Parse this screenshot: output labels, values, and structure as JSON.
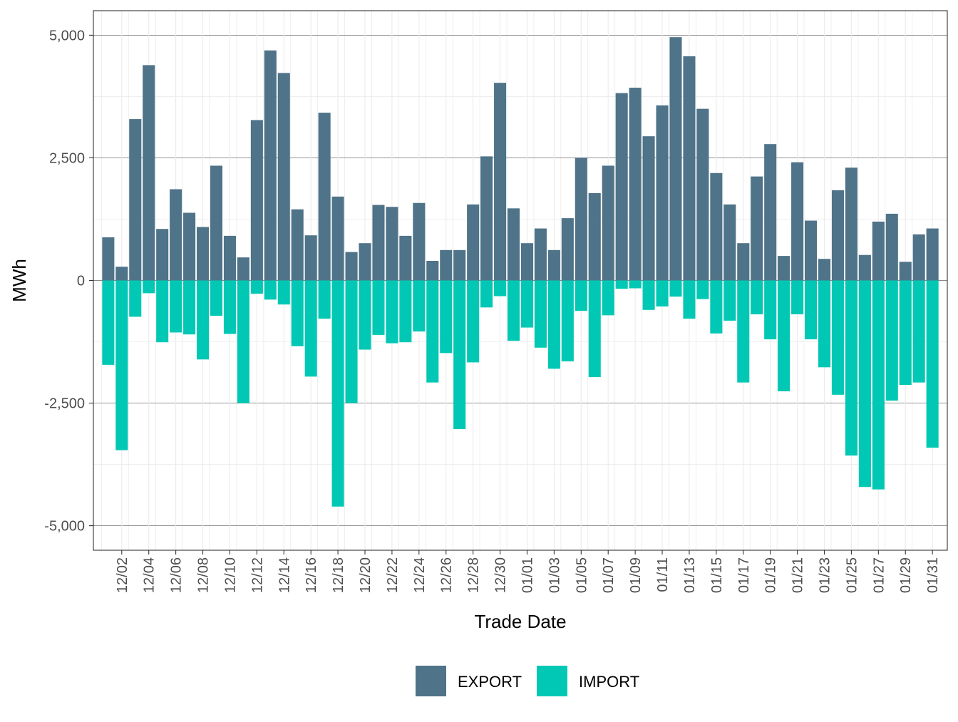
{
  "chart_data": {
    "type": "bar",
    "stacked": "diverging",
    "title": "",
    "xlabel": "Trade Date",
    "ylabel": "MWh",
    "ylim": [
      -5000,
      5000
    ],
    "y_ticks": [
      -5000,
      -2500,
      0,
      2500,
      5000
    ],
    "y_tick_labels": [
      "-5,000",
      "-2,500",
      "0",
      "2,500",
      "5,000"
    ],
    "grid": true,
    "legend_position": "bottom",
    "categories": [
      "12/01",
      "12/02",
      "12/03",
      "12/04",
      "12/05",
      "12/06",
      "12/07",
      "12/08",
      "12/09",
      "12/10",
      "12/11",
      "12/12",
      "12/13",
      "12/14",
      "12/15",
      "12/16",
      "12/17",
      "12/18",
      "12/19",
      "12/20",
      "12/21",
      "12/22",
      "12/23",
      "12/24",
      "12/25",
      "12/26",
      "12/27",
      "12/28",
      "12/29",
      "12/30",
      "12/31",
      "01/01",
      "01/02",
      "01/03",
      "01/04",
      "01/05",
      "01/06",
      "01/07",
      "01/08",
      "01/09",
      "01/10",
      "01/11",
      "01/12",
      "01/13",
      "01/14",
      "01/15",
      "01/16",
      "01/17",
      "01/18",
      "01/19",
      "01/20",
      "01/21",
      "01/22",
      "01/23",
      "01/24",
      "01/25",
      "01/26",
      "01/27",
      "01/28",
      "01/29",
      "01/30",
      "01/31"
    ],
    "x_tick_labels": [
      "12/02",
      "12/04",
      "12/06",
      "12/08",
      "12/10",
      "12/12",
      "12/14",
      "12/16",
      "12/18",
      "12/20",
      "12/22",
      "12/24",
      "12/26",
      "12/28",
      "12/30",
      "01/01",
      "01/03",
      "01/05",
      "01/07",
      "01/09",
      "01/11",
      "01/13",
      "01/15",
      "01/17",
      "01/19",
      "01/21",
      "01/23",
      "01/25",
      "01/27",
      "01/29",
      "01/31"
    ],
    "series": [
      {
        "name": "EXPORT",
        "color": "#4f7388",
        "values": [
          880,
          280,
          3290,
          4390,
          1050,
          1860,
          1380,
          1090,
          2340,
          910,
          470,
          3270,
          4690,
          4230,
          1450,
          920,
          3420,
          1710,
          580,
          760,
          1540,
          1500,
          910,
          1580,
          400,
          620,
          620,
          1550,
          2530,
          4030,
          1470,
          760,
          1060,
          620,
          1270,
          2500,
          1780,
          2340,
          3820,
          3930,
          2940,
          3570,
          4960,
          4570,
          3500,
          2190,
          1550,
          760,
          2120,
          2780,
          500,
          2410,
          1220,
          440,
          1840,
          2300,
          520,
          1200,
          1360,
          380,
          940,
          1060
        ]
      },
      {
        "name": "IMPORT",
        "color": "#00c8b4",
        "values": [
          -1720,
          -3460,
          -740,
          -260,
          -1260,
          -1060,
          -1100,
          -1610,
          -720,
          -1090,
          -2500,
          -270,
          -390,
          -490,
          -1340,
          -1960,
          -780,
          -4610,
          -2500,
          -1410,
          -1110,
          -1280,
          -1260,
          -1040,
          -2080,
          -1480,
          -3030,
          -1670,
          -550,
          -320,
          -1230,
          -960,
          -1370,
          -1800,
          -1650,
          -620,
          -1970,
          -710,
          -170,
          -160,
          -600,
          -530,
          -330,
          -780,
          -380,
          -1080,
          -820,
          -2080,
          -690,
          -1200,
          -2260,
          -690,
          -1200,
          -1770,
          -2330,
          -3570,
          -4210,
          -4260,
          -2450,
          -2130,
          -2080,
          -3410
        ]
      }
    ]
  }
}
